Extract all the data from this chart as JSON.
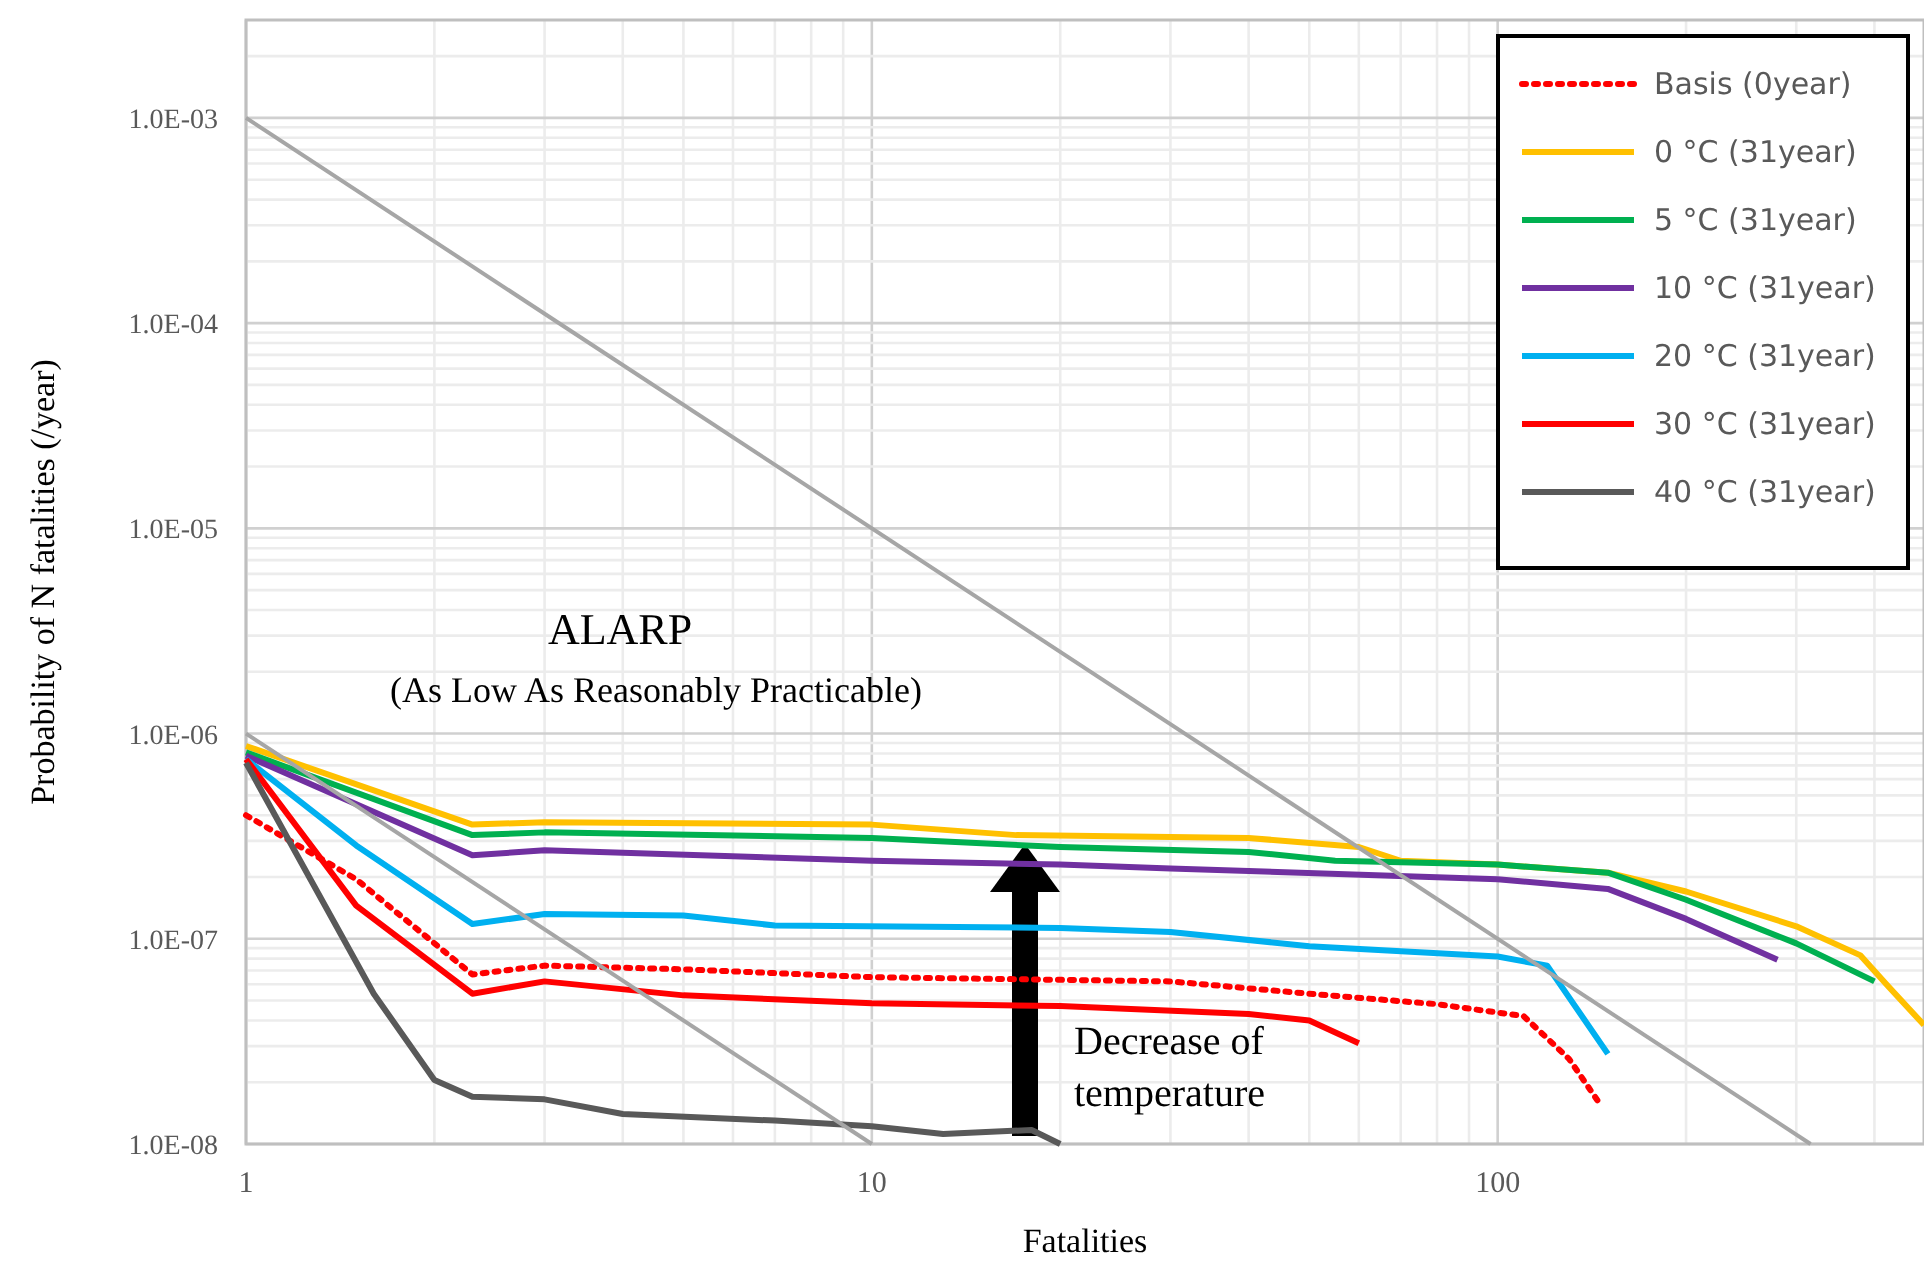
{
  "chart_data": {
    "type": "line",
    "xlabel": "Fatalities",
    "ylabel": "Probability of N fatalities (/year)",
    "log": "xy",
    "grid": true,
    "legend": "top right",
    "xlim": [
      1,
      480
    ],
    "ylim": [
      1e-08,
      0.003
    ],
    "xticks": [
      1,
      {
        "value": 2,
        "label": null
      },
      {
        "value": 3,
        "label": null
      },
      {
        "value": 4,
        "label": null
      },
      {
        "value": 5,
        "label": null
      },
      {
        "value": 6,
        "label": null
      },
      {
        "value": 7,
        "label": null
      },
      {
        "value": 8,
        "label": null
      },
      {
        "value": 9,
        "label": null
      },
      10,
      {
        "value": 20,
        "label": null
      },
      {
        "value": 30,
        "label": null
      },
      {
        "value": 40,
        "label": null
      },
      {
        "value": 50,
        "label": null
      },
      {
        "value": 60,
        "label": null
      },
      {
        "value": 70,
        "label": null
      },
      {
        "value": 80,
        "label": null
      },
      {
        "value": 90,
        "label": null
      },
      100,
      {
        "value": 200,
        "label": null
      },
      {
        "value": 300,
        "label": null
      },
      {
        "value": 400,
        "label": null
      }
    ],
    "yticks": [
      {
        "value": 1e-08,
        "label": "1.0E-08"
      },
      {
        "value": 2e-08,
        "label": null
      },
      {
        "value": 3e-08,
        "label": null
      },
      {
        "value": 4e-08,
        "label": null
      },
      {
        "value": 5e-08,
        "label": null
      },
      {
        "value": 6e-08,
        "label": null
      },
      {
        "value": 7e-08,
        "label": null
      },
      {
        "value": 8e-08,
        "label": null
      },
      {
        "value": 9e-08,
        "label": null
      },
      {
        "value": 1e-07,
        "label": "1.0E-07"
      },
      {
        "value": 2e-07,
        "label": null
      },
      {
        "value": 3e-07,
        "label": null
      },
      {
        "value": 4e-07,
        "label": null
      },
      {
        "value": 5e-07,
        "label": null
      },
      {
        "value": 6e-07,
        "label": null
      },
      {
        "value": 7e-07,
        "label": null
      },
      {
        "value": 8e-07,
        "label": null
      },
      {
        "value": 9e-07,
        "label": null
      },
      {
        "value": 1e-06,
        "label": "1.0E-06"
      },
      {
        "value": 2e-06,
        "label": null
      },
      {
        "value": 3e-06,
        "label": null
      },
      {
        "value": 4e-06,
        "label": null
      },
      {
        "value": 5e-06,
        "label": null
      },
      {
        "value": 6e-06,
        "label": null
      },
      {
        "value": 7e-06,
        "label": null
      },
      {
        "value": 8e-06,
        "label": null
      },
      {
        "value": 9e-06,
        "label": null
      },
      {
        "value": 1e-05,
        "label": "1.0E-05"
      },
      {
        "value": 2e-05,
        "label": null
      },
      {
        "value": 3e-05,
        "label": null
      },
      {
        "value": 4e-05,
        "label": null
      },
      {
        "value": 5e-05,
        "label": null
      },
      {
        "value": 6e-05,
        "label": null
      },
      {
        "value": 7e-05,
        "label": null
      },
      {
        "value": 8e-05,
        "label": null
      },
      {
        "value": 9e-05,
        "label": null
      },
      {
        "value": 0.0001,
        "label": "1.0E-04"
      },
      {
        "value": 0.0002,
        "label": null
      },
      {
        "value": 0.0003,
        "label": null
      },
      {
        "value": 0.0004,
        "label": null
      },
      {
        "value": 0.0005,
        "label": null
      },
      {
        "value": 0.0006,
        "label": null
      },
      {
        "value": 0.0007,
        "label": null
      },
      {
        "value": 0.0008,
        "label": null
      },
      {
        "value": 0.0009,
        "label": null
      },
      {
        "value": 0.001,
        "label": "1.0E-03"
      },
      {
        "value": 0.002,
        "label": null
      }
    ],
    "series": [
      {
        "name": "Basis (0year)",
        "color": "#ff0000",
        "line_style": "dotted",
        "x": [
          1,
          1.5,
          2.3,
          3,
          5,
          10,
          30,
          50,
          80,
          110,
          130,
          145
        ],
        "values": [
          4e-07,
          1.95e-07,
          6.7e-08,
          7.4e-08,
          7.1e-08,
          6.5e-08,
          6.2e-08,
          5.4e-08,
          4.8e-08,
          4.2e-08,
          2.6e-08,
          1.6e-08
        ]
      },
      {
        "name": "0 °C (31year)",
        "color": "#ffc000",
        "x": [
          1,
          2.3,
          3,
          10,
          17,
          40,
          60,
          70,
          100,
          150,
          200,
          300,
          380,
          420,
          480
        ],
        "values": [
          8.7e-07,
          3.6e-07,
          3.7e-07,
          3.6e-07,
          3.2e-07,
          3.1e-07,
          2.8e-07,
          2.4e-07,
          2.3e-07,
          2.1e-07,
          1.7e-07,
          1.15e-07,
          8.3e-08,
          5.9e-08,
          3.8e-08
        ]
      },
      {
        "name": "5 °C (31year)",
        "color": "#00b050",
        "x": [
          1,
          2.3,
          3,
          10,
          20,
          40,
          55,
          100,
          150,
          200,
          300,
          400
        ],
        "values": [
          8.1e-07,
          3.2e-07,
          3.3e-07,
          3.1e-07,
          2.8e-07,
          2.65e-07,
          2.4e-07,
          2.3e-07,
          2.1e-07,
          1.55e-07,
          9.5e-08,
          6.2e-08
        ]
      },
      {
        "name": "10 °C (31year)",
        "color": "#7030a0",
        "x": [
          1,
          2.3,
          3,
          10,
          20,
          30,
          100,
          150,
          200,
          280
        ],
        "values": [
          7.8e-07,
          2.55e-07,
          2.7e-07,
          2.4e-07,
          2.3e-07,
          2.2e-07,
          1.95e-07,
          1.75e-07,
          1.25e-07,
          7.9e-08
        ]
      },
      {
        "name": "20 °C (31year)",
        "color": "#00b0f0",
        "x": [
          1,
          1.5,
          2.3,
          3,
          5,
          7,
          20,
          30,
          50,
          100,
          120,
          150
        ],
        "values": [
          7.5e-07,
          2.85e-07,
          1.18e-07,
          1.32e-07,
          1.3e-07,
          1.16e-07,
          1.13e-07,
          1.08e-07,
          9.2e-08,
          8.2e-08,
          7.4e-08,
          2.75e-08
        ]
      },
      {
        "name": "30 °C (31year)",
        "color": "#ff0000",
        "x": [
          1,
          1.5,
          2.3,
          3,
          5,
          10,
          20,
          40,
          50,
          60
        ],
        "values": [
          7.5e-07,
          1.45e-07,
          5.4e-08,
          6.2e-08,
          5.3e-08,
          4.85e-08,
          4.7e-08,
          4.3e-08,
          4e-08,
          3.1e-08
        ]
      },
      {
        "name": "40 °C (31year)",
        "color": "#595959",
        "x": [
          1,
          1.6,
          2,
          2.3,
          3,
          4,
          7,
          10,
          13,
          18,
          20
        ],
        "values": [
          7.2e-07,
          5.4e-08,
          2.05e-08,
          1.7e-08,
          1.65e-08,
          1.4e-08,
          1.3e-08,
          1.22e-08,
          1.12e-08,
          1.17e-08,
          1e-08
        ]
      },
      {
        "color": "#a6a6a6",
        "x": [
          1,
          316.2
        ],
        "values": [
          0.001,
          1e-08
        ]
      },
      {
        "color": "#a6a6a6",
        "x": [
          1,
          10
        ],
        "values": [
          1e-06,
          1e-08
        ]
      }
    ],
    "annotations": [
      "ALARP",
      "(As Low As Reasonably Practicable)",
      "Decrease of\ntemperature"
    ]
  }
}
